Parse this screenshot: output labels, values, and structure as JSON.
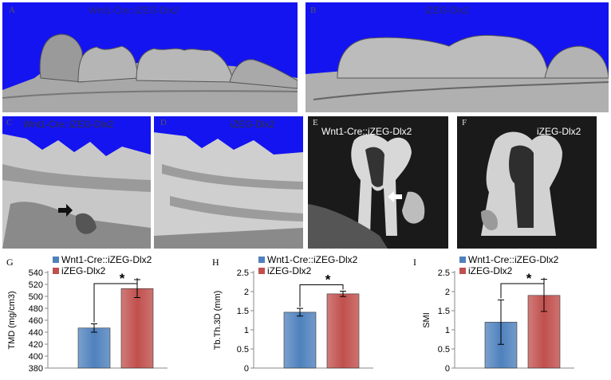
{
  "panels": {
    "A": {
      "letter": "A",
      "title": "Wnt1-Cre::iZEG-Dlx2"
    },
    "B": {
      "letter": "B",
      "title": "iZEG-Dlx2"
    },
    "C": {
      "letter": "C",
      "title": "Wnt1-Cre::iZEG-Dlx2"
    },
    "D": {
      "letter": "D",
      "title": "iZEG-Dlx2"
    },
    "E": {
      "letter": "E",
      "title": "Wnt1-Cre::iZEG-Dlx2"
    },
    "F": {
      "letter": "F",
      "title": "iZEG-Dlx2"
    }
  },
  "colors": {
    "blue_bg": "#1414f0",
    "bar_blue": "#4f81bd",
    "bar_red": "#c0504d",
    "ct_dark": "#1a1a1a",
    "ct_light": "#d8d8d8"
  },
  "chart_data": [
    {
      "letter": "G",
      "type": "bar",
      "ylabel": "TMD (mg/cm3)",
      "ylim": [
        380,
        540
      ],
      "yticks": [
        380,
        400,
        420,
        440,
        460,
        480,
        500,
        520,
        540
      ],
      "series": [
        {
          "name": "Wnt1-Cre::iZEG-Dlx2",
          "value": 447,
          "error": 7,
          "color": "#4f81bd"
        },
        {
          "name": "iZEG-Dlx2",
          "value": 513,
          "error": 15,
          "color": "#c0504d"
        }
      ],
      "annotation": "*"
    },
    {
      "letter": "H",
      "type": "bar",
      "ylabel": "Tb.Th.3D (mm)",
      "ylim": [
        0,
        2.5
      ],
      "yticks": [
        0,
        0.5,
        1,
        1.5,
        2,
        2.5
      ],
      "series": [
        {
          "name": "Wnt1-Cre::iZEG-Dlx2",
          "value": 1.46,
          "error": 0.1,
          "color": "#4f81bd"
        },
        {
          "name": "iZEG-Dlx2",
          "value": 1.94,
          "error": 0.07,
          "color": "#c0504d"
        }
      ],
      "annotation": "*"
    },
    {
      "letter": "I",
      "type": "bar",
      "ylabel": "SMI",
      "ylim": [
        0,
        2.5
      ],
      "yticks": [
        0,
        0.5,
        1,
        1.5,
        2,
        2.5
      ],
      "series": [
        {
          "name": "Wnt1-Cre::iZEG-Dlx2",
          "value": 1.2,
          "error": 0.58,
          "color": "#4f81bd"
        },
        {
          "name": "iZEG-Dlx2",
          "value": 1.9,
          "error": 0.42,
          "color": "#c0504d"
        }
      ],
      "annotation": "*"
    }
  ]
}
